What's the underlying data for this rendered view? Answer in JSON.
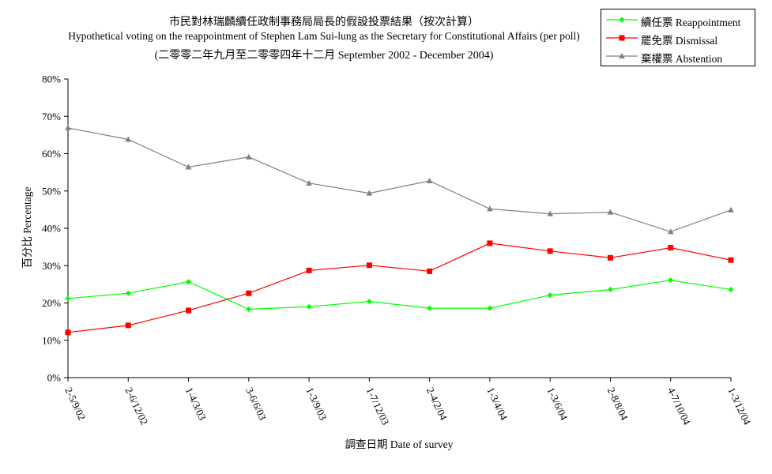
{
  "chart_data": {
    "type": "line",
    "title": "市民對林瑞麟續任政制事務局局長的假設投票結果（按次計算）",
    "subtitle": "Hypothetical voting on the reappointment of Stephen Lam Sui-lung as the Secretary for Constitutional Affairs (per poll)",
    "subtitle2": "(二零零二年九月至二零零四年十二月 September 2002 - December 2004)",
    "xlabel": "調查日期 Date of survey",
    "ylabel": "百分比 Percentage",
    "ylim": [
      0,
      80
    ],
    "yticks": [
      "0%",
      "10%",
      "20%",
      "30%",
      "40%",
      "50%",
      "60%",
      "70%",
      "80%"
    ],
    "grid": false,
    "legend_position": "top-right",
    "categories": [
      "2-5/9/02",
      "2-6/12/02",
      "1-4/3/03",
      "3-6/6/03",
      "1-3/9/03",
      "1-7/12/03",
      "2-4/2/04",
      "1-3/4/04",
      "1-3/6/04",
      "2-8/8/04",
      "4-7/10/04",
      "1-3/12/04"
    ],
    "series": [
      {
        "name": "續任票 Reappointment",
        "name_zh": "續任票",
        "name_en": "Reappointment",
        "color": "#00ff00",
        "marker": "diamond",
        "values": [
          21.2,
          22.6,
          25.7,
          18.3,
          19.0,
          20.4,
          18.6,
          18.6,
          22.1,
          23.6,
          26.1,
          23.6
        ]
      },
      {
        "name": "罷免票 Dismissal",
        "name_zh": "罷免票",
        "name_en": "Dismissal",
        "color": "#ff0000",
        "marker": "square",
        "values": [
          12.1,
          14.0,
          18.0,
          22.6,
          28.7,
          30.1,
          28.5,
          36.0,
          33.9,
          32.1,
          34.8,
          31.5
        ]
      },
      {
        "name": "棄權票 Abstention",
        "name_zh": "棄權票",
        "name_en": "Abstention",
        "color": "#808080",
        "marker": "triangle",
        "values": [
          66.9,
          63.8,
          56.4,
          59.1,
          52.1,
          49.4,
          52.7,
          45.2,
          43.9,
          44.3,
          39.1,
          44.9
        ]
      }
    ]
  }
}
